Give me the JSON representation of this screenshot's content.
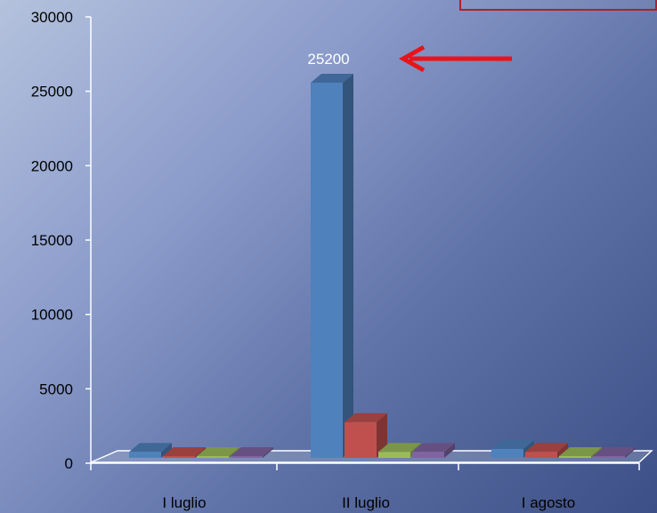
{
  "chart_data": {
    "type": "bar",
    "categories": [
      "I luglio",
      "II luglio",
      "I agosto"
    ],
    "series": [
      {
        "values": [
          400,
          25200,
          600
        ],
        "color": "#4f81bd"
      },
      {
        "values": [
          80,
          2400,
          400
        ],
        "color": "#c0504d"
      },
      {
        "values": [
          50,
          400,
          30
        ],
        "color": "#9bbb59"
      },
      {
        "values": [
          50,
          400,
          30
        ],
        "color": "#8064a2"
      }
    ],
    "ylim": [
      0,
      30000
    ],
    "yticks": [
      0,
      5000,
      10000,
      15000,
      20000,
      25000,
      30000
    ],
    "annotation": {
      "text": "25200",
      "category": "II luglio",
      "arrow_color": "#e8141a"
    }
  }
}
